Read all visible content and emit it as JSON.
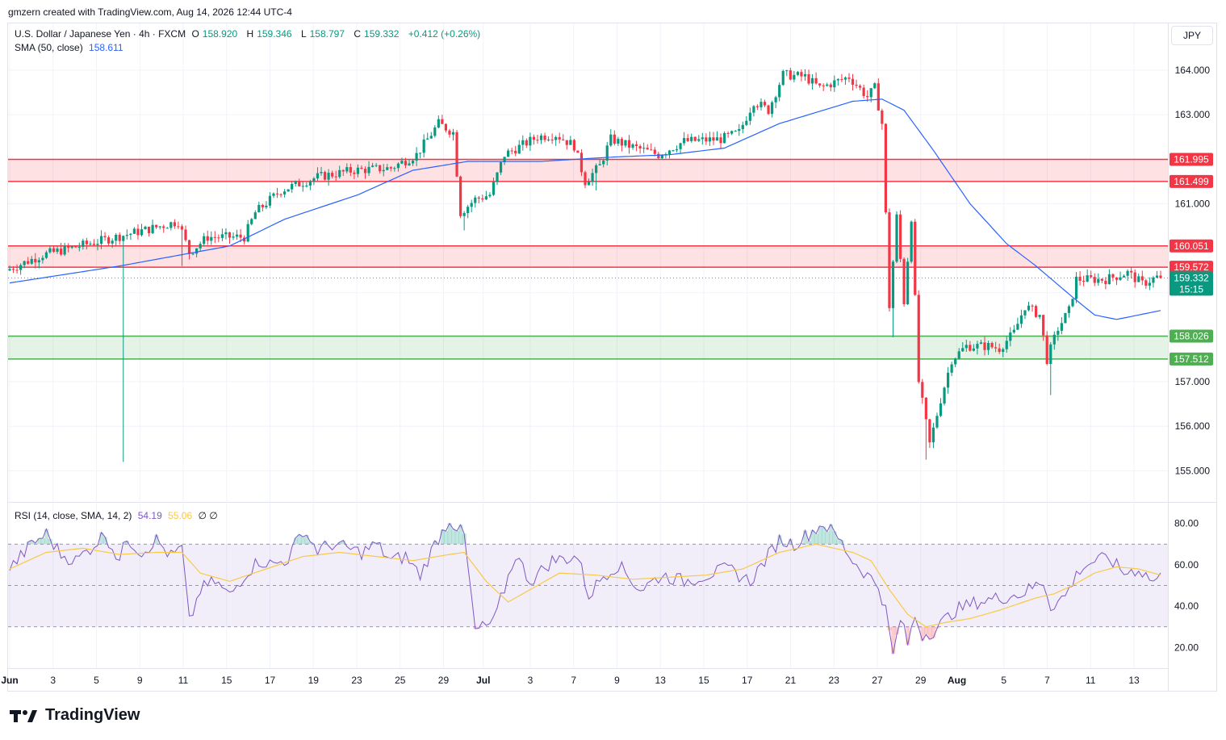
{
  "header": {
    "credit": "gmzern created with TradingView.com, Aug 14, 2026 12:44 UTC-4"
  },
  "legend": {
    "symbol": "U.S. Dollar / Japanese Yen · 4h · FXCM",
    "open_label": "O",
    "open": "158.920",
    "high_label": "H",
    "high": "159.346",
    "low_label": "L",
    "low": "158.797",
    "close_label": "C",
    "close": "159.332",
    "change": "+0.412 (+0.26%)",
    "sma_label": "SMA (50, close)",
    "sma_value": "158.611",
    "rsi_label": "RSI (14, close, SMA, 14, 2)",
    "rsi_value": "54.19",
    "rsi_sma_value": "55.06",
    "rsi_extra": "∅ ∅"
  },
  "currency": "JPY",
  "footer": {
    "brand": "TradingView"
  },
  "colors": {
    "up": "#089981",
    "down": "#f23645",
    "sma": "#2962ff",
    "rsi": "#7e57c2",
    "rsi_sma": "#f7c948",
    "resistance": "#f23645",
    "support": "#4caf50"
  },
  "chart_data": [
    {
      "type": "candlestick",
      "ylim": [
        154.3,
        165.05
      ],
      "y_ticks": [
        "164.000",
        "163.000",
        "161.000",
        "157.000",
        "156.000",
        "155.000"
      ],
      "x_labels": [
        "Jun",
        "3",
        "5",
        "9",
        "11",
        "15",
        "17",
        "19",
        "23",
        "25",
        "29",
        "Jul",
        "3",
        "7",
        "9",
        "13",
        "15",
        "17",
        "21",
        "23",
        "27",
        "29",
        "Aug",
        "5",
        "7",
        "11",
        "13"
      ],
      "zones": [
        {
          "kind": "resistance",
          "from": 161.499,
          "to": 161.995,
          "labels": [
            "161.499",
            "161.995"
          ]
        },
        {
          "kind": "resistance",
          "from": 159.572,
          "to": 160.051,
          "labels": [
            "159.572",
            "160.051"
          ]
        },
        {
          "kind": "support",
          "from": 157.512,
          "to": 158.026,
          "labels": [
            "157.512",
            "158.026"
          ]
        }
      ],
      "current_price": {
        "value": 159.332,
        "label": "159.332",
        "countdown": "15:15"
      },
      "anchors": [
        [
          0,
          159.5
        ],
        [
          10,
          159.85
        ],
        [
          20,
          160.05
        ],
        [
          30,
          160.25
        ],
        [
          40,
          160.45
        ],
        [
          47,
          160.6
        ],
        [
          50,
          159.9
        ],
        [
          55,
          160.25
        ],
        [
          65,
          160.25
        ],
        [
          68,
          160.8
        ],
        [
          75,
          161.3
        ],
        [
          85,
          161.6
        ],
        [
          95,
          161.75
        ],
        [
          105,
          161.8
        ],
        [
          112,
          162.1
        ],
        [
          118,
          162.8
        ],
        [
          122,
          162.6
        ],
        [
          124,
          160.8
        ],
        [
          128,
          161.1
        ],
        [
          132,
          161.2
        ],
        [
          136,
          162.1
        ],
        [
          145,
          162.5
        ],
        [
          150,
          162.55
        ],
        [
          155,
          162.3
        ],
        [
          158,
          161.5
        ],
        [
          162,
          161.85
        ],
        [
          165,
          162.45
        ],
        [
          170,
          162.3
        ],
        [
          178,
          162.1
        ],
        [
          185,
          162.4
        ],
        [
          195,
          162.45
        ],
        [
          200,
          162.6
        ],
        [
          204,
          163.3
        ],
        [
          208,
          163.1
        ],
        [
          212,
          163.9
        ],
        [
          218,
          163.85
        ],
        [
          222,
          163.6
        ],
        [
          230,
          163.85
        ],
        [
          235,
          163.4
        ],
        [
          237,
          163.6
        ],
        [
          239,
          162.8
        ],
        [
          241,
          158.7
        ],
        [
          243,
          160.7
        ],
        [
          245,
          158.8
        ],
        [
          247,
          160.7
        ],
        [
          249,
          157.0
        ],
        [
          252,
          155.6
        ],
        [
          255,
          156.6
        ],
        [
          258,
          157.5
        ],
        [
          262,
          157.8
        ],
        [
          268,
          157.8
        ],
        [
          271,
          157.75
        ],
        [
          275,
          158.1
        ],
        [
          278,
          158.7
        ],
        [
          282,
          158.5
        ],
        [
          284,
          157.5
        ],
        [
          287,
          158.2
        ],
        [
          290,
          158.6
        ],
        [
          292,
          159.3
        ],
        [
          296,
          159.3
        ],
        [
          300,
          159.3
        ],
        [
          306,
          159.45
        ],
        [
          310,
          159.2
        ],
        [
          314,
          159.35
        ]
      ],
      "spikes": [
        {
          "i": 31,
          "low": 155.2
        },
        {
          "i": 47,
          "low": 159.6
        },
        {
          "i": 124,
          "low": 160.4
        },
        {
          "i": 241,
          "low": 158.0
        },
        {
          "i": 250,
          "low": 155.25
        },
        {
          "i": 284,
          "low": 156.7
        },
        {
          "i": 160,
          "low": 161.3
        }
      ],
      "sma": [
        [
          0,
          159.22
        ],
        [
          30,
          159.6
        ],
        [
          60,
          160.05
        ],
        [
          75,
          160.65
        ],
        [
          95,
          161.2
        ],
        [
          110,
          161.75
        ],
        [
          125,
          161.95
        ],
        [
          145,
          161.95
        ],
        [
          165,
          162.05
        ],
        [
          180,
          162.1
        ],
        [
          195,
          162.25
        ],
        [
          210,
          162.8
        ],
        [
          220,
          163.05
        ],
        [
          230,
          163.3
        ],
        [
          238,
          163.35
        ],
        [
          244,
          163.1
        ],
        [
          252,
          162.2
        ],
        [
          262,
          161.0
        ],
        [
          272,
          160.1
        ],
        [
          280,
          159.6
        ],
        [
          290,
          158.9
        ],
        [
          296,
          158.5
        ],
        [
          302,
          158.4
        ],
        [
          308,
          158.5
        ],
        [
          314,
          158.6
        ]
      ]
    },
    {
      "type": "line",
      "series": [
        {
          "values": [
            [
              0,
              58
            ],
            [
              6,
              70
            ],
            [
              10,
              75
            ],
            [
              14,
              65
            ],
            [
              18,
              62
            ],
            [
              22,
              68
            ],
            [
              26,
              75
            ],
            [
              30,
              62
            ],
            [
              32,
              73
            ],
            [
              36,
              66
            ],
            [
              40,
              72
            ],
            [
              44,
              64
            ],
            [
              47,
              68
            ],
            [
              49,
              32
            ],
            [
              52,
              48
            ],
            [
              56,
              52
            ],
            [
              60,
              45
            ],
            [
              64,
              55
            ],
            [
              68,
              62
            ],
            [
              72,
              60
            ],
            [
              76,
              63
            ],
            [
              80,
              77
            ],
            [
              84,
              67
            ],
            [
              88,
              70
            ],
            [
              92,
              68
            ],
            [
              96,
              66
            ],
            [
              100,
              70
            ],
            [
              104,
              62
            ],
            [
              108,
              64
            ],
            [
              112,
              55
            ],
            [
              116,
              70
            ],
            [
              120,
              82
            ],
            [
              124,
              74
            ],
            [
              127,
              28
            ],
            [
              132,
              32
            ],
            [
              138,
              65
            ],
            [
              142,
              52
            ],
            [
              148,
              62
            ],
            [
              155,
              64
            ],
            [
              158,
              45
            ],
            [
              162,
              55
            ],
            [
              166,
              60
            ],
            [
              172,
              48
            ],
            [
              178,
              55
            ],
            [
              184,
              52
            ],
            [
              190,
              55
            ],
            [
              196,
              58
            ],
            [
              202,
              52
            ],
            [
              206,
              62
            ],
            [
              210,
              72
            ],
            [
              214,
              70
            ],
            [
              218,
              75
            ],
            [
              222,
              80
            ],
            [
              226,
              73
            ],
            [
              230,
              62
            ],
            [
              234,
              55
            ],
            [
              237,
              50
            ],
            [
              239,
              38
            ],
            [
              241,
              16
            ],
            [
              243,
              34
            ],
            [
              245,
              22
            ],
            [
              247,
              35
            ],
            [
              249,
              26
            ],
            [
              252,
              28
            ],
            [
              258,
              38
            ],
            [
              264,
              42
            ],
            [
              270,
              44
            ],
            [
              276,
              46
            ],
            [
              282,
              52
            ],
            [
              284,
              40
            ],
            [
              288,
              45
            ],
            [
              292,
              58
            ],
            [
              296,
              62
            ],
            [
              300,
              63
            ],
            [
              304,
              56
            ],
            [
              308,
              58
            ],
            [
              312,
              52
            ],
            [
              314,
              54
            ]
          ]
        },
        {
          "values": [
            [
              0,
              58
            ],
            [
              10,
              66
            ],
            [
              20,
              68
            ],
            [
              30,
              65
            ],
            [
              40,
              66
            ],
            [
              47,
              66
            ],
            [
              52,
              56
            ],
            [
              60,
              52
            ],
            [
              70,
              58
            ],
            [
              80,
              64
            ],
            [
              90,
              66
            ],
            [
              100,
              64
            ],
            [
              110,
              62
            ],
            [
              120,
              65
            ],
            [
              124,
              66
            ],
            [
              130,
              52
            ],
            [
              136,
              42
            ],
            [
              142,
              48
            ],
            [
              150,
              56
            ],
            [
              160,
              55
            ],
            [
              170,
              53
            ],
            [
              180,
              54
            ],
            [
              190,
              55
            ],
            [
              200,
              58
            ],
            [
              210,
              66
            ],
            [
              220,
              70
            ],
            [
              230,
              66
            ],
            [
              235,
              62
            ],
            [
              240,
              48
            ],
            [
              245,
              36
            ],
            [
              250,
              30
            ],
            [
              255,
              32
            ],
            [
              262,
              34
            ],
            [
              270,
              38
            ],
            [
              280,
              44
            ],
            [
              285,
              46
            ],
            [
              290,
              50
            ],
            [
              296,
              56
            ],
            [
              302,
              59
            ],
            [
              308,
              58
            ],
            [
              314,
              55
            ]
          ]
        }
      ],
      "ylim": [
        10,
        90
      ],
      "y_ticks": [
        "80.00",
        "60.00",
        "40.00",
        "20.00"
      ],
      "bands": {
        "upper": 70,
        "middle": 50,
        "lower": 30
      }
    }
  ]
}
